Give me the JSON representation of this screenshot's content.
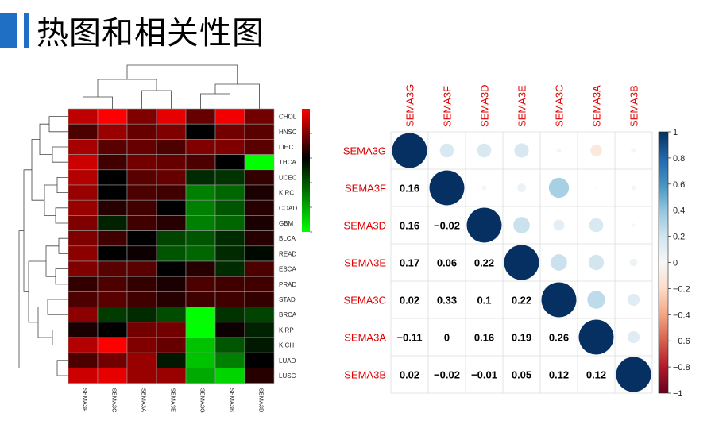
{
  "page": {
    "title": "热图和相关性图"
  },
  "chart_data": [
    {
      "type": "heatmap",
      "title": "",
      "columns": [
        "SEMA3F",
        "SEMA3C",
        "SEMA3A",
        "SEMA3E",
        "SEMA3G",
        "SEMA3B",
        "SEMA3D"
      ],
      "rows": [
        "CHOL",
        "HNSC",
        "LIHC",
        "THCA",
        "UCEC",
        "KIRC",
        "COAD",
        "GBM",
        "BLCA",
        "READ",
        "ESCA",
        "PRAD",
        "STAD",
        "BRCA",
        "KIRP",
        "KICH",
        "LUAD",
        "LUSC"
      ],
      "values": [
        [
          1.5,
          2.0,
          1.0,
          1.8,
          0.8,
          1.9,
          0.9
        ],
        [
          0.6,
          1.2,
          0.8,
          1.0,
          0.0,
          0.9,
          0.7
        ],
        [
          1.3,
          0.7,
          0.8,
          0.6,
          1.0,
          1.0,
          0.7
        ],
        [
          1.6,
          0.5,
          0.9,
          0.8,
          0.6,
          0.0,
          -3.0
        ],
        [
          1.4,
          0.0,
          0.7,
          0.8,
          -0.5,
          -0.6,
          0.4
        ],
        [
          1.2,
          0.0,
          0.6,
          0.5,
          -1.5,
          -1.2,
          0.2
        ],
        [
          1.2,
          0.3,
          0.5,
          0.0,
          -1.5,
          -1.0,
          0.3
        ],
        [
          1.0,
          -0.4,
          0.5,
          0.3,
          -1.5,
          -1.2,
          0.2
        ],
        [
          1.0,
          0.5,
          0.0,
          -0.8,
          -1.0,
          -0.5,
          0.3
        ],
        [
          1.1,
          0.0,
          0.1,
          -1.0,
          -1.2,
          -0.5,
          -0.1
        ],
        [
          1.0,
          0.7,
          0.7,
          0.0,
          0.3,
          -0.5,
          0.6
        ],
        [
          0.4,
          0.6,
          0.4,
          0.2,
          0.6,
          0.5,
          0.5
        ],
        [
          0.6,
          0.7,
          0.5,
          0.3,
          0.5,
          0.5,
          0.4
        ],
        [
          1.1,
          -0.7,
          -0.5,
          -0.9,
          -3.0,
          -0.6,
          -0.8
        ],
        [
          0.2,
          0.0,
          0.9,
          0.9,
          -3.0,
          0.1,
          -0.4
        ],
        [
          1.4,
          2.0,
          1.0,
          0.8,
          -2.3,
          -1.0,
          -0.3
        ],
        [
          0.6,
          0.9,
          1.2,
          -0.3,
          -2.3,
          -1.5,
          0.0
        ],
        [
          1.6,
          1.8,
          1.2,
          1.2,
          -2.0,
          -2.5,
          0.3
        ]
      ],
      "legend": {
        "ticks": [
          1,
          0,
          -1,
          -2,
          -3
        ],
        "range": [
          -3,
          2
        ],
        "colors": {
          "high": "#ff0000",
          "mid": "#000000",
          "low": "#00ff00"
        }
      }
    },
    {
      "type": "heatmap",
      "title": "",
      "variables": [
        "SEMA3G",
        "SEMA3F",
        "SEMA3D",
        "SEMA3E",
        "SEMA3C",
        "SEMA3A",
        "SEMA3B"
      ],
      "lower_labels": [
        [
          "",
          "",
          "",
          "",
          "",
          "",
          ""
        ],
        [
          "0.16",
          "",
          "",
          "",
          "",
          "",
          ""
        ],
        [
          "0.16",
          "−0.02",
          "",
          "",
          "",
          "",
          ""
        ],
        [
          "0.17",
          "0.06",
          "0.22",
          "",
          "",
          "",
          ""
        ],
        [
          "0.02",
          "0.33",
          "0.1",
          "0.22",
          "",
          "",
          ""
        ],
        [
          "−0.11",
          "0",
          "0.16",
          "0.19",
          "0.26",
          "",
          ""
        ],
        [
          "0.02",
          "−0.02",
          "−0.01",
          "0.05",
          "0.12",
          "0.12",
          ""
        ]
      ],
      "matrix": [
        [
          1,
          0.16,
          0.16,
          0.17,
          0.02,
          -0.11,
          0.02
        ],
        [
          0.16,
          1,
          -0.02,
          0.06,
          0.33,
          0,
          -0.02
        ],
        [
          0.16,
          -0.02,
          1,
          0.22,
          0.1,
          0.16,
          -0.01
        ],
        [
          0.17,
          0.06,
          0.22,
          1,
          0.22,
          0.19,
          0.05
        ],
        [
          0.02,
          0.33,
          0.1,
          0.22,
          1,
          0.26,
          0.12
        ],
        [
          -0.11,
          0,
          0.16,
          0.19,
          0.26,
          1,
          0.12
        ],
        [
          0.02,
          -0.02,
          -0.01,
          0.05,
          0.12,
          0.12,
          1
        ]
      ],
      "colorbar": {
        "ticks": [
          "1",
          "0.8",
          "0.6",
          "0.4",
          "0.2",
          "0",
          "−0.2",
          "−0.4",
          "−0.6",
          "−0.8",
          "−1"
        ],
        "range": [
          -1,
          1
        ]
      },
      "colors": {
        "label": "#e00000",
        "positive": "#053061",
        "negative": "#67001f"
      }
    }
  ]
}
